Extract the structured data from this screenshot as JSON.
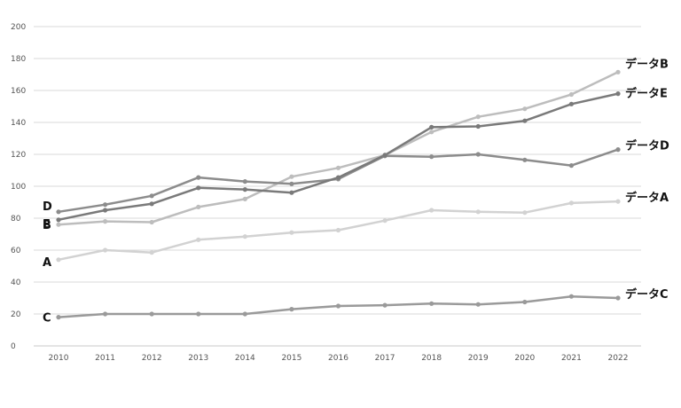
{
  "chart_data": {
    "type": "line",
    "x": [
      2010,
      2011,
      2012,
      2013,
      2014,
      2015,
      2016,
      2017,
      2018,
      2019,
      2020,
      2021,
      2022
    ],
    "ylim": [
      0,
      200
    ],
    "yticks": [
      0,
      20,
      40,
      60,
      80,
      100,
      120,
      140,
      160,
      180,
      200
    ],
    "grid": true,
    "series": [
      {
        "name": "データA",
        "start_label": "A",
        "color": "#d2d2d2",
        "values": [
          54,
          60,
          58.5,
          66.5,
          68.5,
          71,
          72.5,
          78.5,
          85,
          84,
          83.5,
          89.5,
          90.5
        ]
      },
      {
        "name": "データB",
        "start_label": "B",
        "color": "#bdbdbd",
        "values": [
          76,
          78,
          77.5,
          87,
          92,
          106,
          111.5,
          119.5,
          134,
          143.5,
          148.5,
          157.5,
          171.5
        ]
      },
      {
        "name": "データC",
        "start_label": "C",
        "color": "#9a9a9a",
        "values": [
          18,
          20,
          20,
          20,
          20,
          23,
          25,
          25.5,
          26.5,
          26,
          27.5,
          31,
          30
        ]
      },
      {
        "name": "データD",
        "start_label": "D",
        "color": "#8c8c8c",
        "values": [
          84,
          88.5,
          94,
          105.5,
          103,
          101.5,
          104.5,
          119,
          118.5,
          120,
          116.5,
          113,
          123
        ]
      },
      {
        "name": "データE",
        "start_label": "E",
        "color": "#7a7a7a",
        "values": [
          79,
          85,
          89,
          99,
          98,
          96,
          105.5,
          119.5,
          137,
          137.5,
          141,
          151.5,
          158
        ]
      }
    ]
  }
}
